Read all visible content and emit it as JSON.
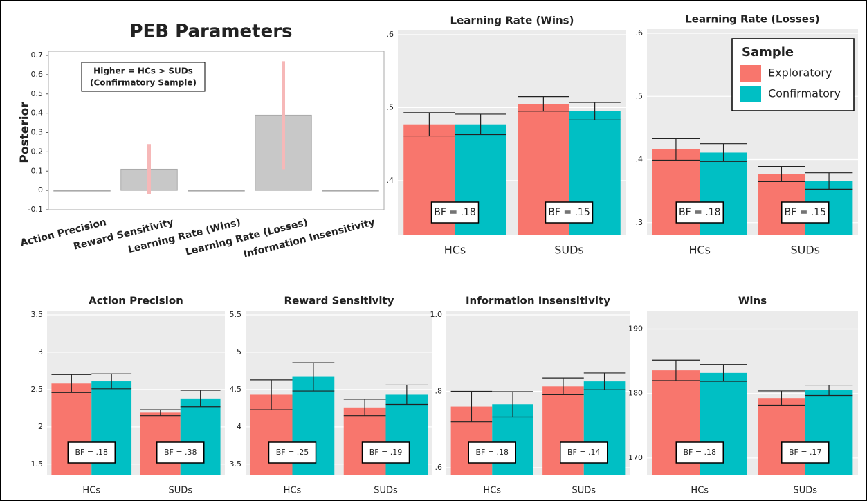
{
  "chart_data": [
    {
      "type": "peb",
      "title": "PEB Parameters",
      "ylabel": "Posterior",
      "annotation": [
        "Higher = HCs > SUDs",
        "(Confirmatory Sample)"
      ],
      "categories": [
        "Action Precision",
        "Reward Sensitivity",
        "Learning Rate (Wins)",
        "Learning Rate (Losses)",
        "Information Insensitivity"
      ],
      "values": [
        0,
        0.11,
        0,
        0.39,
        0
      ],
      "errors": [
        null,
        0.13,
        null,
        0.28,
        null
      ],
      "color": "#c8c8c8",
      "error_color": "#f6b8b8",
      "ylim": [
        -0.1,
        0.7
      ],
      "yticks": [
        -0.1,
        0,
        0.1,
        0.2,
        0.3,
        0.4,
        0.5,
        0.6,
        0.7
      ]
    },
    {
      "type": "bar",
      "title": "Learning Rate (Wins)",
      "categories": [
        "HCs",
        "SUDs"
      ],
      "series": [
        {
          "name": "Exploratory",
          "color": "#f8766d",
          "values": [
            0.477,
            0.505
          ],
          "errors": [
            0.016,
            0.01
          ]
        },
        {
          "name": "Confirmatory",
          "color": "#00bfc4",
          "values": [
            0.477,
            0.495
          ],
          "errors": [
            0.014,
            0.012
          ]
        }
      ],
      "annotations": [
        "BF = .18",
        "BF = .15"
      ],
      "ylim": [
        0.325,
        0.6
      ],
      "yticks": [
        {
          "value": 0.4,
          "label": ".4"
        },
        {
          "value": 0.5,
          "label": ".5"
        },
        {
          "value": 0.6,
          "label": ".6"
        }
      ],
      "grid": true
    },
    {
      "type": "bar",
      "title": "Learning Rate (Losses)",
      "categories": [
        "HCs",
        "SUDs"
      ],
      "series": [
        {
          "name": "Exploratory",
          "color": "#f8766d",
          "values": [
            0.416,
            0.377
          ],
          "errors": [
            0.017,
            0.012
          ]
        },
        {
          "name": "Confirmatory",
          "color": "#00bfc4",
          "values": [
            0.411,
            0.366
          ],
          "errors": [
            0.014,
            0.013
          ]
        }
      ],
      "annotations": [
        "BF = .18",
        "BF = .15"
      ],
      "ylim": [
        0.28,
        0.6
      ],
      "yticks": [
        {
          "value": 0.3,
          "label": ".3"
        },
        {
          "value": 0.4,
          "label": ".4"
        },
        {
          "value": 0.5,
          "label": ".5"
        },
        {
          "value": 0.6,
          "label": ".6"
        }
      ],
      "grid": true,
      "legend": {
        "title": "Sample",
        "position": "upper right"
      }
    },
    {
      "type": "bar",
      "title": "Action Precision",
      "categories": [
        "HCs",
        "SUDs"
      ],
      "series": [
        {
          "name": "Exploratory",
          "color": "#f8766d",
          "values": [
            2.58,
            2.19
          ],
          "errors": [
            0.12,
            0.04
          ]
        },
        {
          "name": "Confirmatory",
          "color": "#00bfc4",
          "values": [
            2.61,
            2.38
          ],
          "errors": [
            0.1,
            0.11
          ]
        }
      ],
      "annotations": [
        "BF = .18",
        "BF = .38"
      ],
      "ylim": [
        1.35,
        3.5
      ],
      "yticks": [
        1.5,
        2,
        2.5,
        3,
        3.5
      ],
      "grid": true
    },
    {
      "type": "bar",
      "title": "Reward Sensitivity",
      "categories": [
        "HCs",
        "SUDs"
      ],
      "series": [
        {
          "name": "Exploratory",
          "color": "#f8766d",
          "values": [
            4.43,
            4.26
          ],
          "errors": [
            0.2,
            0.11
          ]
        },
        {
          "name": "Confirmatory",
          "color": "#00bfc4",
          "values": [
            4.67,
            4.43
          ],
          "errors": [
            0.19,
            0.13
          ]
        }
      ],
      "annotations": [
        "BF = .25",
        "BF = .19"
      ],
      "ylim": [
        3.35,
        5.5
      ],
      "yticks": [
        3.5,
        4,
        4.5,
        5,
        5.5
      ],
      "grid": true
    },
    {
      "type": "bar",
      "title": "Information Insensitivity",
      "categories": [
        "HCs",
        "SUDs"
      ],
      "series": [
        {
          "name": "Exploratory",
          "color": "#f8766d",
          "values": [
            0.76,
            0.813
          ],
          "errors": [
            0.04,
            0.022
          ]
        },
        {
          "name": "Confirmatory",
          "color": "#00bfc4",
          "values": [
            0.766,
            0.826
          ],
          "errors": [
            0.033,
            0.022
          ]
        }
      ],
      "annotations": [
        "BF = .18",
        "BF = .14"
      ],
      "ylim": [
        0.58,
        1.0
      ],
      "yticks": [
        {
          "value": 0.6,
          "label": ".6"
        },
        {
          "value": 0.8,
          "label": ".8"
        },
        {
          "value": 1.0,
          "label": "1.0"
        }
      ],
      "grid": true
    },
    {
      "type": "bar",
      "title": "Wins",
      "categories": [
        "HCs",
        "SUDs"
      ],
      "series": [
        {
          "name": "Exploratory",
          "color": "#f8766d",
          "values": [
            183.6,
            179.3
          ],
          "errors": [
            1.6,
            1.1
          ]
        },
        {
          "name": "Confirmatory",
          "color": "#00bfc4",
          "values": [
            183.2,
            180.5
          ],
          "errors": [
            1.3,
            0.8
          ]
        }
      ],
      "annotations": [
        "BF = .18",
        "BF = .17"
      ],
      "ylim": [
        167.3,
        192.2
      ],
      "yticks": [
        170,
        180,
        190
      ],
      "grid": true
    }
  ]
}
